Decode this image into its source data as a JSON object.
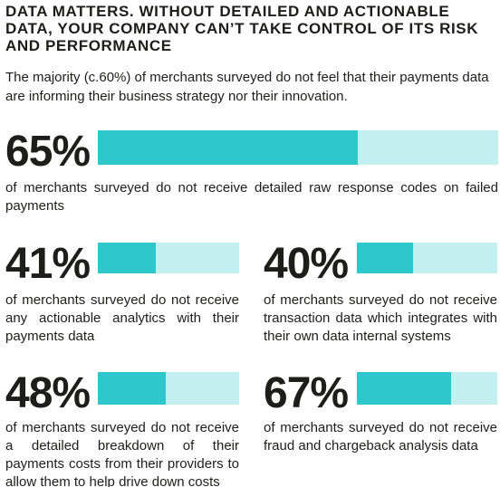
{
  "headline": "DATA MATTERS. WITHOUT DETAILED AND ACTIONABLE DATA, YOUR COMPANY CAN’T TAKE CONTROL OF ITS RISK AND PERFORMANCE",
  "intro": "The majority (c.60%) of merchants surveyed do not feel that their payments data are informing their business strategy nor their innovation.",
  "colors": {
    "bar_fill": "#2ec8cc",
    "bar_track": "#c3eff0",
    "text": "#1d1d1b"
  },
  "stats": [
    {
      "value": 65,
      "label": "65%",
      "description": "of merchants surveyed do not receive detailed raw response codes on failed payments"
    },
    {
      "value": 41,
      "label": "41%",
      "description": "of merchants surveyed do not receive any actionable analytics with their payments data"
    },
    {
      "value": 40,
      "label": "40%",
      "description": "of merchants surveyed do not receive transaction data which integrates with their own data internal systems"
    },
    {
      "value": 48,
      "label": "48%",
      "description": "of merchants surveyed do not receive a detailed breakdown of their payments costs from their providers to allow them to help drive down costs"
    },
    {
      "value": 67,
      "label": "67%",
      "description": "of merchants surveyed do not receive fraud and chargeback analysis data"
    }
  ]
}
